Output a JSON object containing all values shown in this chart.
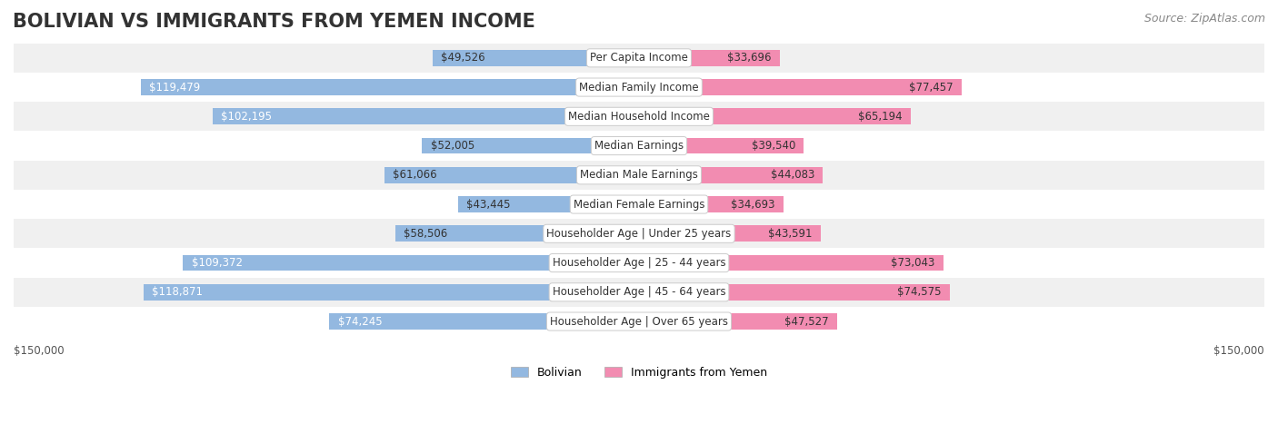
{
  "title": "BOLIVIAN VS IMMIGRANTS FROM YEMEN INCOME",
  "source": "Source: ZipAtlas.com",
  "max_value": 150000,
  "categories": [
    "Per Capita Income",
    "Median Family Income",
    "Median Household Income",
    "Median Earnings",
    "Median Male Earnings",
    "Median Female Earnings",
    "Householder Age | Under 25 years",
    "Householder Age | 25 - 44 years",
    "Householder Age | 45 - 64 years",
    "Householder Age | Over 65 years"
  ],
  "bolivian": [
    49526,
    119479,
    102195,
    52005,
    61066,
    43445,
    58506,
    109372,
    118871,
    74245
  ],
  "yemen": [
    33696,
    77457,
    65194,
    39540,
    44083,
    34693,
    43591,
    73043,
    74575,
    47527
  ],
  "color_bolivian": "#93b8e0",
  "color_bolivian_label": "#6fa8d8",
  "color_yemen": "#f28cb1",
  "color_yemen_label": "#ee82b0",
  "row_bg_light": "#f0f0f0",
  "row_bg_white": "#ffffff",
  "label_box_color": "#ffffff",
  "label_box_edge": "#cccccc",
  "title_fontsize": 15,
  "source_fontsize": 9,
  "value_fontsize": 8.5,
  "category_fontsize": 8.5,
  "axis_fontsize": 8.5,
  "legend_fontsize": 9
}
